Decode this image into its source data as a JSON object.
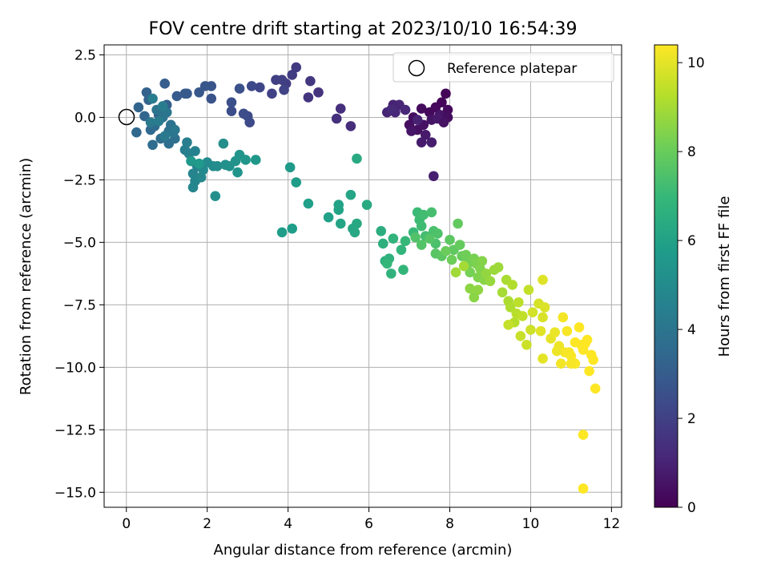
{
  "chart_data": {
    "type": "scatter",
    "title": "FOV centre drift starting at 2023/10/10 16:54:39",
    "xlabel": "Angular distance from reference (arcmin)",
    "ylabel": "Rotation from reference (arcmin)",
    "xlim": [
      -0.55,
      12.25
    ],
    "ylim": [
      -15.6,
      2.9
    ],
    "xticks": [
      0,
      2,
      4,
      6,
      8,
      10,
      12
    ],
    "xtick_labels": [
      "0",
      "2",
      "4",
      "6",
      "8",
      "10",
      "12"
    ],
    "yticks": [
      2.5,
      0,
      -2.5,
      -5,
      -7.5,
      -10,
      -12.5,
      -15
    ],
    "ytick_labels": [
      "2.5",
      "0.0",
      "−2.5",
      "−5.0",
      "−7.5",
      "−10.0",
      "−12.5",
      "−15.0"
    ],
    "grid": true,
    "legend": {
      "placement": "top-right",
      "entries": [
        "Reference platepar"
      ]
    },
    "reference_point": {
      "x": 0.0,
      "y": 0.0
    },
    "colorbar": {
      "label": "Hours from first FF file",
      "colormap": "viridis",
      "range": [
        0,
        10.4
      ],
      "ticks": [
        0,
        2,
        4,
        6,
        8,
        10
      ],
      "tick_labels": [
        "0",
        "2",
        "4",
        "6",
        "8",
        "10"
      ]
    },
    "colormap_stops": [
      "#440154",
      "#482878",
      "#3e4989",
      "#31688e",
      "#26828e",
      "#1f9e89",
      "#35b779",
      "#6ece58",
      "#b5de2b",
      "#fde725"
    ],
    "points": [
      [
        7.9,
        0.95,
        0.1
      ],
      [
        7.8,
        0.6,
        0.15
      ],
      [
        7.65,
        0.4,
        0.2
      ],
      [
        7.5,
        0.2,
        0.25
      ],
      [
        7.3,
        0.35,
        0.3
      ],
      [
        7.1,
        0.0,
        0.35
      ],
      [
        7.0,
        -0.3,
        0.4
      ],
      [
        7.2,
        -0.5,
        0.45
      ],
      [
        7.35,
        -0.3,
        0.5
      ],
      [
        7.55,
        -0.1,
        0.55
      ],
      [
        7.75,
        0.1,
        0.6
      ],
      [
        7.95,
        0.3,
        0.3
      ],
      [
        7.95,
        0.0,
        0.4
      ],
      [
        7.7,
        -0.05,
        0.7
      ],
      [
        7.4,
        -0.7,
        0.75
      ],
      [
        7.3,
        -1.0,
        0.8
      ],
      [
        7.55,
        -1.0,
        0.85
      ],
      [
        7.6,
        -2.35,
        0.9
      ],
      [
        7.2,
        -0.1,
        0.95
      ],
      [
        7.85,
        -0.2,
        0.5
      ],
      [
        6.6,
        0.5,
        1.0
      ],
      [
        6.45,
        0.2,
        1.05
      ],
      [
        6.75,
        0.5,
        1.1
      ],
      [
        6.9,
        0.3,
        1.15
      ],
      [
        6.65,
        0.2,
        1.2
      ],
      [
        6.55,
        0.3,
        1.25
      ],
      [
        7.05,
        -0.55,
        0.6
      ],
      [
        5.55,
        -0.35,
        1.35
      ],
      [
        5.3,
        0.35,
        1.4
      ],
      [
        5.2,
        -0.05,
        1.45
      ],
      [
        4.75,
        1.0,
        1.55
      ],
      [
        4.5,
        0.8,
        1.6
      ],
      [
        4.55,
        1.45,
        1.7
      ],
      [
        4.2,
        2.0,
        1.8
      ],
      [
        4.1,
        1.7,
        1.85
      ],
      [
        3.95,
        1.35,
        1.9
      ],
      [
        3.85,
        1.5,
        1.95
      ],
      [
        3.7,
        1.5,
        2.0
      ],
      [
        3.6,
        0.95,
        2.05
      ],
      [
        3.9,
        1.1,
        2.1
      ],
      [
        3.3,
        1.2,
        2.2
      ],
      [
        3.1,
        1.25,
        2.3
      ],
      [
        3.05,
        -0.2,
        2.35
      ],
      [
        3.0,
        0.05,
        2.4
      ],
      [
        2.9,
        0.15,
        2.45
      ],
      [
        2.6,
        0.25,
        2.5
      ],
      [
        2.6,
        0.6,
        2.55
      ],
      [
        2.8,
        1.15,
        2.6
      ],
      [
        2.1,
        0.75,
        2.7
      ],
      [
        2.1,
        1.25,
        2.75
      ],
      [
        1.95,
        1.25,
        2.8
      ],
      [
        1.8,
        1.0,
        2.85
      ],
      [
        1.5,
        0.95,
        2.9
      ],
      [
        1.45,
        0.95,
        2.95
      ],
      [
        1.25,
        0.85,
        3.0
      ],
      [
        0.95,
        1.35,
        3.05
      ],
      [
        1.0,
        0.5,
        3.1
      ],
      [
        0.8,
        0.1,
        3.2
      ],
      [
        0.5,
        1.0,
        3.25
      ],
      [
        0.55,
        0.7,
        3.3
      ],
      [
        0.3,
        0.4,
        3.35
      ],
      [
        0.45,
        0.05,
        3.4
      ],
      [
        0.25,
        -0.6,
        3.5
      ],
      [
        0.6,
        -0.5,
        3.55
      ],
      [
        0.7,
        -0.35,
        3.6
      ],
      [
        0.65,
        -1.1,
        3.65
      ],
      [
        0.85,
        -0.85,
        3.7
      ],
      [
        1.05,
        -1.05,
        3.75
      ],
      [
        1.2,
        -0.85,
        3.8
      ],
      [
        1.05,
        -0.55,
        3.85
      ],
      [
        1.1,
        -0.3,
        3.9
      ],
      [
        0.9,
        0.0,
        3.95
      ],
      [
        0.75,
        0.3,
        4.0
      ],
      [
        1.0,
        0.2,
        4.05
      ],
      [
        1.15,
        -0.6,
        4.1
      ],
      [
        1.2,
        -0.5,
        4.15
      ],
      [
        0.95,
        -0.75,
        4.2
      ],
      [
        0.6,
        -0.2,
        4.25
      ],
      [
        0.8,
        -0.15,
        4.3
      ],
      [
        0.9,
        0.45,
        4.35
      ],
      [
        0.65,
        0.75,
        4.4
      ],
      [
        1.5,
        -1.0,
        4.45
      ],
      [
        1.45,
        -1.3,
        4.5
      ],
      [
        1.55,
        -1.45,
        4.55
      ],
      [
        1.7,
        -1.35,
        4.6
      ],
      [
        1.75,
        -1.95,
        4.65
      ],
      [
        1.65,
        -2.25,
        4.7
      ],
      [
        1.7,
        -2.55,
        4.75
      ],
      [
        1.65,
        -2.8,
        4.8
      ],
      [
        1.85,
        -2.4,
        4.85
      ],
      [
        1.9,
        -2.1,
        4.9
      ],
      [
        2.0,
        -1.8,
        4.95
      ],
      [
        2.15,
        -1.95,
        5.0
      ],
      [
        2.25,
        -1.95,
        5.05
      ],
      [
        2.4,
        -1.05,
        5.1
      ],
      [
        2.2,
        -3.15,
        5.15
      ],
      [
        2.45,
        -1.9,
        5.2
      ],
      [
        2.55,
        -1.95,
        5.25
      ],
      [
        2.7,
        -1.75,
        5.3
      ],
      [
        2.8,
        -1.5,
        5.35
      ],
      [
        2.75,
        -2.2,
        5.4
      ],
      [
        2.95,
        -1.7,
        5.45
      ],
      [
        3.2,
        -1.7,
        5.5
      ],
      [
        1.6,
        -1.75,
        5.55
      ],
      [
        1.8,
        -1.85,
        5.6
      ],
      [
        4.05,
        -2.0,
        5.65
      ],
      [
        4.2,
        -2.6,
        5.7
      ],
      [
        3.85,
        -4.6,
        5.75
      ],
      [
        4.1,
        -4.45,
        5.8
      ],
      [
        4.5,
        -3.45,
        5.85
      ],
      [
        5.0,
        -4.0,
        5.9
      ],
      [
        5.25,
        -3.5,
        5.95
      ],
      [
        5.25,
        -3.7,
        6.0
      ],
      [
        5.3,
        -4.25,
        6.05
      ],
      [
        5.55,
        -3.1,
        6.1
      ],
      [
        5.6,
        -4.45,
        6.15
      ],
      [
        5.65,
        -4.6,
        6.2
      ],
      [
        5.7,
        -4.25,
        6.25
      ],
      [
        5.7,
        -1.65,
        6.3
      ],
      [
        5.95,
        -3.5,
        6.35
      ],
      [
        6.3,
        -4.55,
        6.45
      ],
      [
        6.35,
        -5.05,
        6.55
      ],
      [
        6.4,
        -5.75,
        6.6
      ],
      [
        6.5,
        -5.65,
        6.65
      ],
      [
        6.55,
        -6.25,
        6.7
      ],
      [
        6.6,
        -4.85,
        6.75
      ],
      [
        6.8,
        -5.3,
        6.8
      ],
      [
        6.85,
        -6.1,
        6.85
      ],
      [
        6.45,
        -5.85,
        6.9
      ],
      [
        6.9,
        -4.95,
        6.95
      ],
      [
        7.1,
        -4.6,
        7.0
      ],
      [
        7.2,
        -3.8,
        7.05
      ],
      [
        7.25,
        -4.1,
        7.1
      ],
      [
        7.3,
        -4.35,
        7.15
      ],
      [
        7.35,
        -3.9,
        7.2
      ],
      [
        7.4,
        -4.75,
        7.25
      ],
      [
        7.55,
        -3.8,
        7.3
      ],
      [
        7.6,
        -4.55,
        7.35
      ],
      [
        7.65,
        -5.05,
        7.4
      ],
      [
        7.7,
        -4.65,
        7.45
      ],
      [
        7.15,
        -4.8,
        7.5
      ],
      [
        7.3,
        -5.1,
        7.55
      ],
      [
        7.5,
        -4.85,
        7.6
      ],
      [
        7.65,
        -5.45,
        7.65
      ],
      [
        7.8,
        -5.55,
        7.7
      ],
      [
        8.0,
        -4.9,
        7.75
      ],
      [
        8.1,
        -5.3,
        7.8
      ],
      [
        8.2,
        -4.25,
        7.85
      ],
      [
        8.25,
        -5.1,
        7.9
      ],
      [
        8.3,
        -5.55,
        7.95
      ],
      [
        7.9,
        -5.35,
        8.0
      ],
      [
        8.05,
        -5.7,
        8.05
      ],
      [
        8.4,
        -5.5,
        8.1
      ],
      [
        8.45,
        -5.85,
        8.15
      ],
      [
        8.5,
        -6.2,
        8.2
      ],
      [
        8.6,
        -5.65,
        8.25
      ],
      [
        8.65,
        -5.85,
        8.3
      ],
      [
        8.7,
        -6.4,
        8.35
      ],
      [
        8.75,
        -6.05,
        8.4
      ],
      [
        8.8,
        -5.75,
        8.45
      ],
      [
        8.85,
        -6.5,
        8.5
      ],
      [
        8.6,
        -7.2,
        8.55
      ],
      [
        8.5,
        -6.85,
        8.6
      ],
      [
        8.7,
        -6.9,
        8.65
      ],
      [
        8.9,
        -6.25,
        8.7
      ],
      [
        9.0,
        -6.55,
        8.75
      ],
      [
        9.1,
        -6.1,
        8.8
      ],
      [
        9.2,
        -6.0,
        8.85
      ],
      [
        8.15,
        -6.2,
        8.9
      ],
      [
        8.35,
        -5.95,
        8.95
      ],
      [
        9.3,
        -7.0,
        9.0
      ],
      [
        9.4,
        -6.5,
        9.05
      ],
      [
        9.45,
        -7.35,
        9.1
      ],
      [
        9.5,
        -7.6,
        9.15
      ],
      [
        9.55,
        -6.7,
        9.2
      ],
      [
        9.6,
        -8.2,
        9.25
      ],
      [
        9.65,
        -7.85,
        9.3
      ],
      [
        9.7,
        -7.4,
        9.35
      ],
      [
        9.8,
        -7.95,
        9.4
      ],
      [
        9.95,
        -6.9,
        9.45
      ],
      [
        9.45,
        -8.3,
        9.5
      ],
      [
        9.75,
        -8.75,
        9.55
      ],
      [
        9.9,
        -9.1,
        9.6
      ],
      [
        10.0,
        -8.5,
        9.65
      ],
      [
        10.05,
        -7.8,
        9.7
      ],
      [
        10.2,
        -7.45,
        9.75
      ],
      [
        10.3,
        -8.0,
        9.8
      ],
      [
        10.35,
        -7.6,
        9.85
      ],
      [
        10.3,
        -6.5,
        9.9
      ],
      [
        10.25,
        -8.55,
        9.95
      ],
      [
        10.3,
        -9.65,
        10.0
      ],
      [
        10.5,
        -8.85,
        10.05
      ],
      [
        10.6,
        -8.6,
        10.1
      ],
      [
        10.7,
        -9.15,
        10.15
      ],
      [
        10.75,
        -9.85,
        10.2
      ],
      [
        10.8,
        -8.0,
        10.25
      ],
      [
        10.9,
        -8.55,
        10.3
      ],
      [
        11.0,
        -9.55,
        10.35
      ],
      [
        11.1,
        -9.0,
        10.4
      ],
      [
        11.2,
        -8.4,
        10.4
      ],
      [
        11.3,
        -9.3,
        10.4
      ],
      [
        11.4,
        -8.9,
        10.4
      ],
      [
        11.45,
        -10.15,
        10.4
      ],
      [
        11.5,
        -9.5,
        10.4
      ],
      [
        11.55,
        -9.7,
        10.4
      ],
      [
        11.6,
        -10.85,
        10.4
      ],
      [
        11.35,
        -9.05,
        10.4
      ],
      [
        11.1,
        -9.85,
        10.35
      ],
      [
        10.85,
        -9.4,
        10.25
      ],
      [
        10.65,
        -9.35,
        10.15
      ],
      [
        11.3,
        -12.7,
        10.4
      ],
      [
        11.3,
        -14.85,
        10.4
      ],
      [
        11.0,
        -9.85,
        10.3
      ],
      [
        10.95,
        -9.4,
        10.3
      ],
      [
        11.25,
        -9.1,
        10.4
      ]
    ]
  }
}
